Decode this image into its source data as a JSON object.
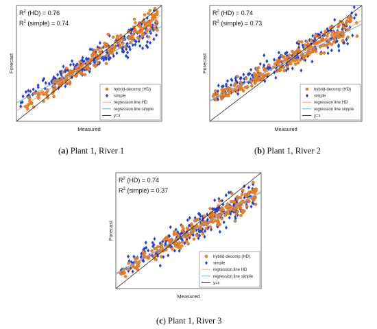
{
  "captions": [
    {
      "label": "a",
      "text": "Plant 1, River 1"
    },
    {
      "label": "b",
      "text": "Plant 1, River 2"
    },
    {
      "label": "c",
      "text": "Plant 1, River 3"
    }
  ],
  "legend": {
    "hd": "hybrid-decomp (HD)",
    "simple": "simple",
    "reg_hd": "regression line HD",
    "reg_simple": "regression line simple",
    "yx": "y=x"
  },
  "colors": {
    "hd_marker": "#f58220",
    "hd_edge": "#b05a10",
    "simple_marker": "#1f3ee0",
    "reg_hd": "#f0a060",
    "reg_simple": "#5aa0e0",
    "yx": "#222222"
  },
  "chart_data": [
    {
      "id": "a",
      "type": "scatter",
      "xlabel": "Measured",
      "ylabel": "Forecast",
      "r2_hd": 0.76,
      "r2_simple": 0.74,
      "r2_hd_text": "(HD) = 0.76",
      "r2_simple_text": "(simple) = 0.74",
      "reg_hd": {
        "slope": 0.83,
        "intercept": 0.09
      },
      "reg_simple": {
        "slope": 0.66,
        "intercept": 0.16
      },
      "seed": 11
    },
    {
      "id": "b",
      "type": "scatter",
      "xlabel": "Measured",
      "ylabel": "Forecast",
      "r2_hd": 0.74,
      "r2_simple": 0.73,
      "r2_hd_text": "(HD) = 0.74",
      "r2_simple_text": "(simple) = 0.73",
      "reg_hd": {
        "slope": 0.7,
        "intercept": 0.17
      },
      "reg_simple": {
        "slope": 0.66,
        "intercept": 0.18
      },
      "seed": 23
    },
    {
      "id": "c",
      "type": "scatter",
      "xlabel": "Measured",
      "ylabel": "Forecast",
      "r2_hd": 0.74,
      "r2_simple": 0.37,
      "r2_hd_text": "(HD) = 0.74",
      "r2_simple_text": "(simple) = 0.37",
      "reg_hd": {
        "slope": 0.72,
        "intercept": 0.12
      },
      "reg_simple": {
        "slope": 0.7,
        "intercept": 0.13
      },
      "seed": 37
    }
  ]
}
